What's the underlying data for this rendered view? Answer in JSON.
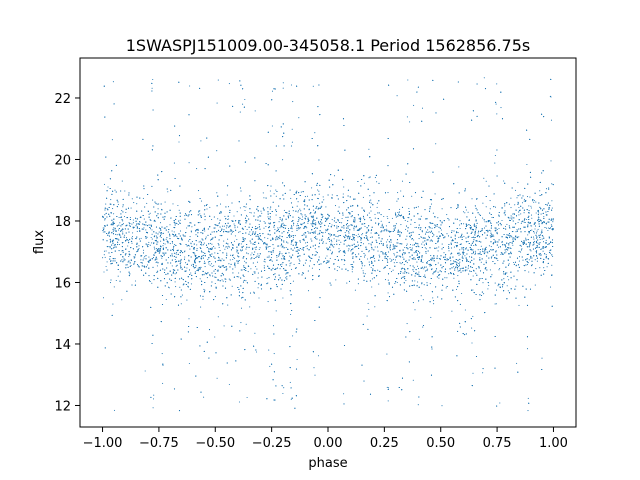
{
  "chart_data": {
    "type": "scatter",
    "title": "1SWASPJ151009.00-345058.1 Period 1562856.75s",
    "xlabel": "phase",
    "ylabel": "flux",
    "xlim": [
      -1.1,
      1.1
    ],
    "ylim": [
      11.3,
      23.3
    ],
    "xticks": [
      -1.0,
      -0.75,
      -0.5,
      -0.25,
      0.0,
      0.25,
      0.5,
      0.75,
      1.0
    ],
    "xtick_labels": [
      "−1.00",
      "−0.75",
      "−0.50",
      "−0.25",
      "0.00",
      "0.25",
      "0.50",
      "0.75",
      "1.00"
    ],
    "yticks": [
      12,
      14,
      16,
      18,
      20,
      22
    ],
    "ytick_labels": [
      "12",
      "14",
      "16",
      "18",
      "20",
      "22"
    ],
    "grid": false,
    "legend": "none",
    "marker_color": "#1f77b4",
    "series": [
      {
        "points_summary": {
          "x_range": [
            -1.0,
            1.0
          ],
          "y_core_range": [
            15.5,
            19.0
          ],
          "y_full_range": [
            11.8,
            22.7
          ],
          "median_flux": 17.3
        }
      }
    ]
  }
}
